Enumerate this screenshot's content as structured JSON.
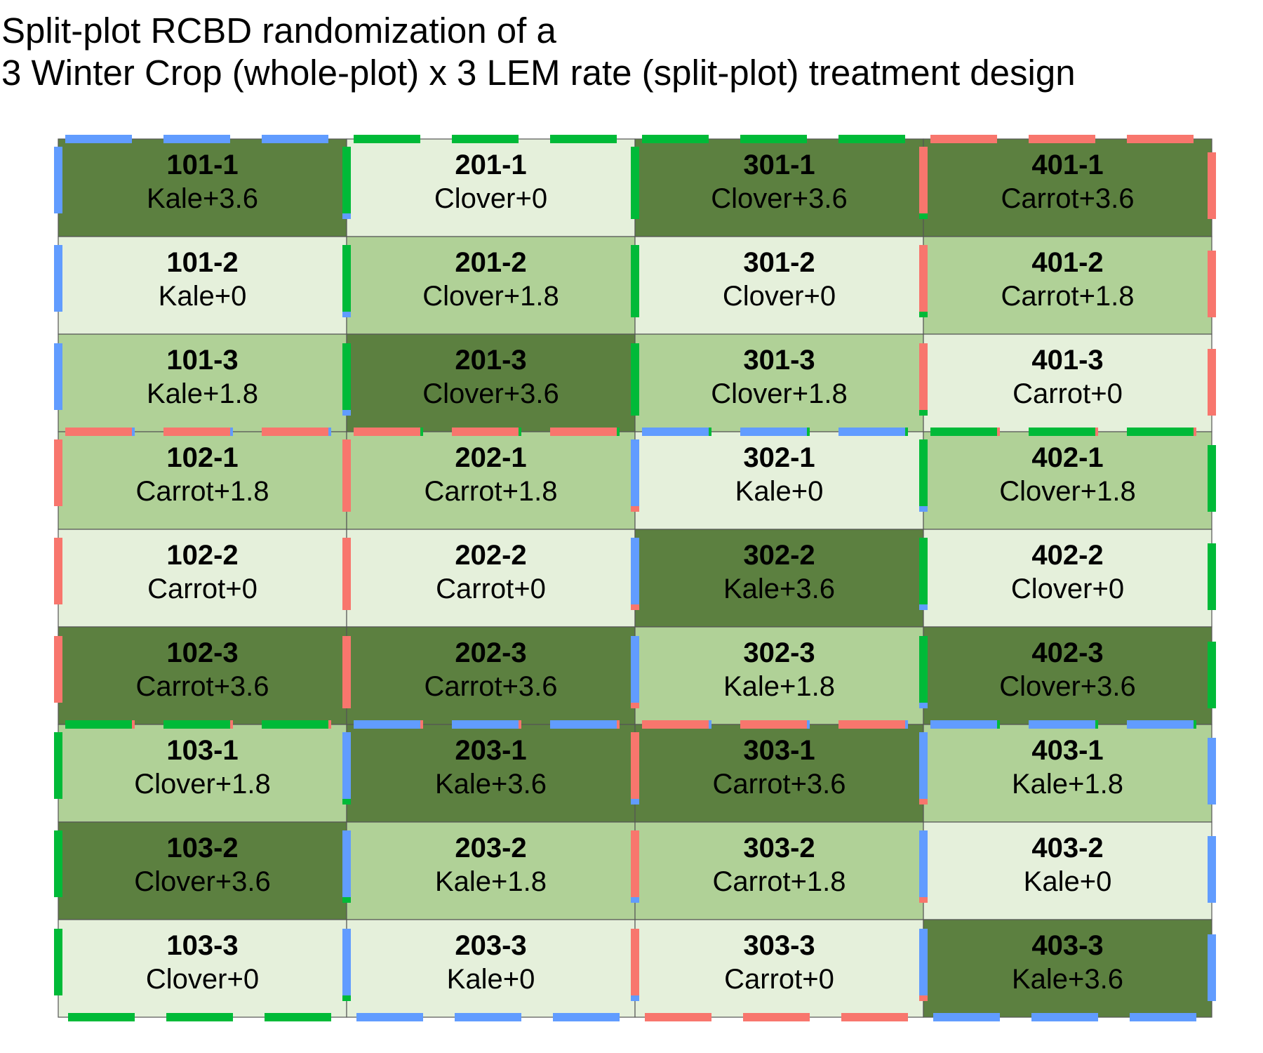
{
  "title": {
    "line1": "Split-plot RCBD randomization of a",
    "line2": "3 Winter Crop (whole-plot) x 3 LEM rate (split-plot) treatment design"
  },
  "colors": {
    "rate_fill": {
      "0": "#e5f0db",
      "1.8": "#b0d197",
      "3.6": "#5c8040"
    },
    "crop_border": {
      "Kale": "#619cff",
      "Clover": "#00ba38",
      "Carrot": "#f8766d"
    },
    "grid_line": "#555555"
  },
  "blocks": [
    {
      "column": 1,
      "whole_plots": [
        {
          "crop": "Kale",
          "split_plots": [
            {
              "id": "101-1",
              "label": "Kale+3.6",
              "rate": "3.6"
            },
            {
              "id": "101-2",
              "label": "Kale+0",
              "rate": "0"
            },
            {
              "id": "101-3",
              "label": "Kale+1.8",
              "rate": "1.8"
            }
          ]
        },
        {
          "crop": "Carrot",
          "split_plots": [
            {
              "id": "102-1",
              "label": "Carrot+1.8",
              "rate": "1.8"
            },
            {
              "id": "102-2",
              "label": "Carrot+0",
              "rate": "0"
            },
            {
              "id": "102-3",
              "label": "Carrot+3.6",
              "rate": "3.6"
            }
          ]
        },
        {
          "crop": "Clover",
          "split_plots": [
            {
              "id": "103-1",
              "label": "Clover+1.8",
              "rate": "1.8"
            },
            {
              "id": "103-2",
              "label": "Clover+3.6",
              "rate": "3.6"
            },
            {
              "id": "103-3",
              "label": "Clover+0",
              "rate": "0"
            }
          ]
        }
      ]
    },
    {
      "column": 2,
      "whole_plots": [
        {
          "crop": "Clover",
          "split_plots": [
            {
              "id": "201-1",
              "label": "Clover+0",
              "rate": "0"
            },
            {
              "id": "201-2",
              "label": "Clover+1.8",
              "rate": "1.8"
            },
            {
              "id": "201-3",
              "label": "Clover+3.6",
              "rate": "3.6"
            }
          ]
        },
        {
          "crop": "Carrot",
          "split_plots": [
            {
              "id": "202-1",
              "label": "Carrot+1.8",
              "rate": "1.8"
            },
            {
              "id": "202-2",
              "label": "Carrot+0",
              "rate": "0"
            },
            {
              "id": "202-3",
              "label": "Carrot+3.6",
              "rate": "3.6"
            }
          ]
        },
        {
          "crop": "Kale",
          "split_plots": [
            {
              "id": "203-1",
              "label": "Kale+3.6",
              "rate": "3.6"
            },
            {
              "id": "203-2",
              "label": "Kale+1.8",
              "rate": "1.8"
            },
            {
              "id": "203-3",
              "label": "Kale+0",
              "rate": "0"
            }
          ]
        }
      ]
    },
    {
      "column": 3,
      "whole_plots": [
        {
          "crop": "Clover",
          "split_plots": [
            {
              "id": "301-1",
              "label": "Clover+3.6",
              "rate": "3.6"
            },
            {
              "id": "301-2",
              "label": "Clover+0",
              "rate": "0"
            },
            {
              "id": "301-3",
              "label": "Clover+1.8",
              "rate": "1.8"
            }
          ]
        },
        {
          "crop": "Kale",
          "split_plots": [
            {
              "id": "302-1",
              "label": "Kale+0",
              "rate": "0"
            },
            {
              "id": "302-2",
              "label": "Kale+3.6",
              "rate": "3.6"
            },
            {
              "id": "302-3",
              "label": "Kale+1.8",
              "rate": "1.8"
            }
          ]
        },
        {
          "crop": "Carrot",
          "split_plots": [
            {
              "id": "303-1",
              "label": "Carrot+3.6",
              "rate": "3.6"
            },
            {
              "id": "303-2",
              "label": "Carrot+1.8",
              "rate": "1.8"
            },
            {
              "id": "303-3",
              "label": "Carrot+0",
              "rate": "0"
            }
          ]
        }
      ]
    },
    {
      "column": 4,
      "whole_plots": [
        {
          "crop": "Carrot",
          "split_plots": [
            {
              "id": "401-1",
              "label": "Carrot+3.6",
              "rate": "3.6"
            },
            {
              "id": "401-2",
              "label": "Carrot+1.8",
              "rate": "1.8"
            },
            {
              "id": "401-3",
              "label": "Carrot+0",
              "rate": "0"
            }
          ]
        },
        {
          "crop": "Clover",
          "split_plots": [
            {
              "id": "402-1",
              "label": "Clover+1.8",
              "rate": "1.8"
            },
            {
              "id": "402-2",
              "label": "Clover+0",
              "rate": "0"
            },
            {
              "id": "402-3",
              "label": "Clover+3.6",
              "rate": "3.6"
            }
          ]
        },
        {
          "crop": "Kale",
          "split_plots": [
            {
              "id": "403-1",
              "label": "Kale+1.8",
              "rate": "1.8"
            },
            {
              "id": "403-2",
              "label": "Kale+0",
              "rate": "0"
            },
            {
              "id": "403-3",
              "label": "Kale+3.6",
              "rate": "3.6"
            }
          ]
        }
      ]
    }
  ]
}
